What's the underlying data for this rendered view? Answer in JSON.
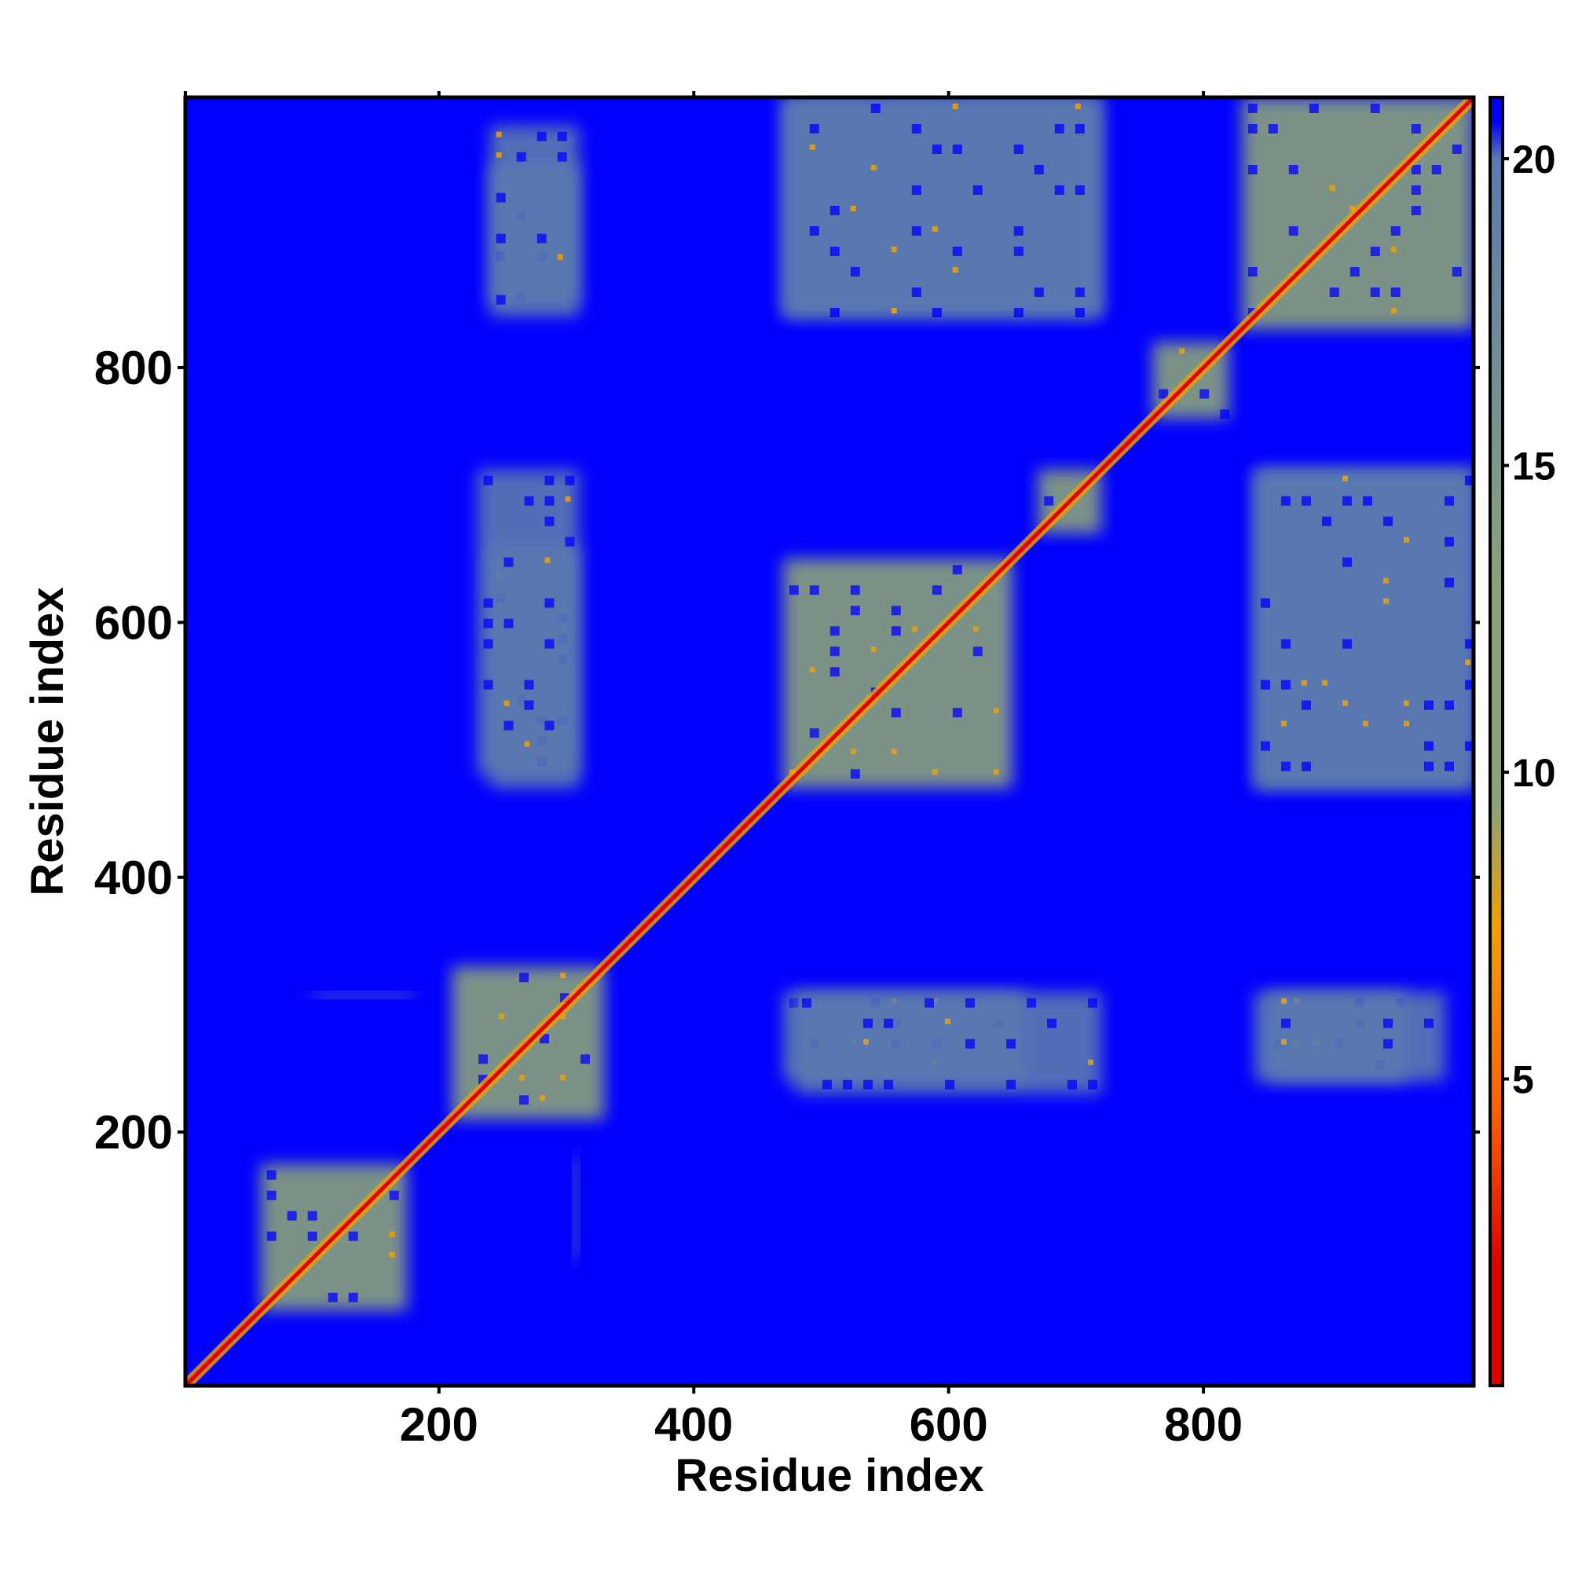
{
  "chart_data": {
    "type": "heatmap",
    "title": "",
    "xlabel": "Residue index",
    "ylabel": "Residue index",
    "xlim": [
      1,
      1012
    ],
    "ylim": [
      1,
      1012
    ],
    "x_ticks": [
      "200",
      "400",
      "600",
      "800"
    ],
    "y_ticks": [
      "200",
      "400",
      "600",
      "800"
    ],
    "x_tick_values": [
      200,
      400,
      600,
      800
    ],
    "y_tick_values": [
      200,
      400,
      600,
      800
    ],
    "colorbar": {
      "range": [
        0,
        21
      ],
      "ticks": [
        "5",
        "10",
        "15",
        "20"
      ],
      "tick_values": [
        5,
        10,
        15,
        20
      ],
      "colors": {
        "low": "#e00000",
        "mid_low": "#ff6000",
        "mid": "#f0a000",
        "mid_high": "#8aa27a",
        "high": "#5a7ab0",
        "max": "#0000ff"
      }
    },
    "background_value": 21,
    "diagonal_value": 2,
    "domains": [
      {
        "start": 60,
        "end": 175,
        "value": 13
      },
      {
        "start": 210,
        "end": 330,
        "value": 14
      },
      {
        "start": 470,
        "end": 650,
        "value": 13
      },
      {
        "start": 670,
        "end": 720,
        "value": 14
      },
      {
        "start": 760,
        "end": 820,
        "value": 13
      },
      {
        "start": 830,
        "end": 1012,
        "value": 13
      }
    ],
    "off_diagonal_blocks": [
      {
        "x": [
          240,
          310
        ],
        "y": [
          470,
          660
        ],
        "value": 15
      },
      {
        "x": [
          240,
          310
        ],
        "y": [
          850,
          960
        ],
        "value": 16
      },
      {
        "x": [
          470,
          720
        ],
        "y": [
          840,
          1012
        ],
        "value": 15
      },
      {
        "x": [
          480,
          720
        ],
        "y": [
          230,
          310
        ],
        "value": 15
      },
      {
        "x": [
          840,
          1012
        ],
        "y": [
          470,
          720
        ],
        "value": 15
      },
      {
        "x": [
          840,
          990
        ],
        "y": [
          240,
          310
        ],
        "value": 16
      },
      {
        "x": [
          100,
          180
        ],
        "y": [
          305,
          310
        ],
        "value": 17
      }
    ]
  }
}
